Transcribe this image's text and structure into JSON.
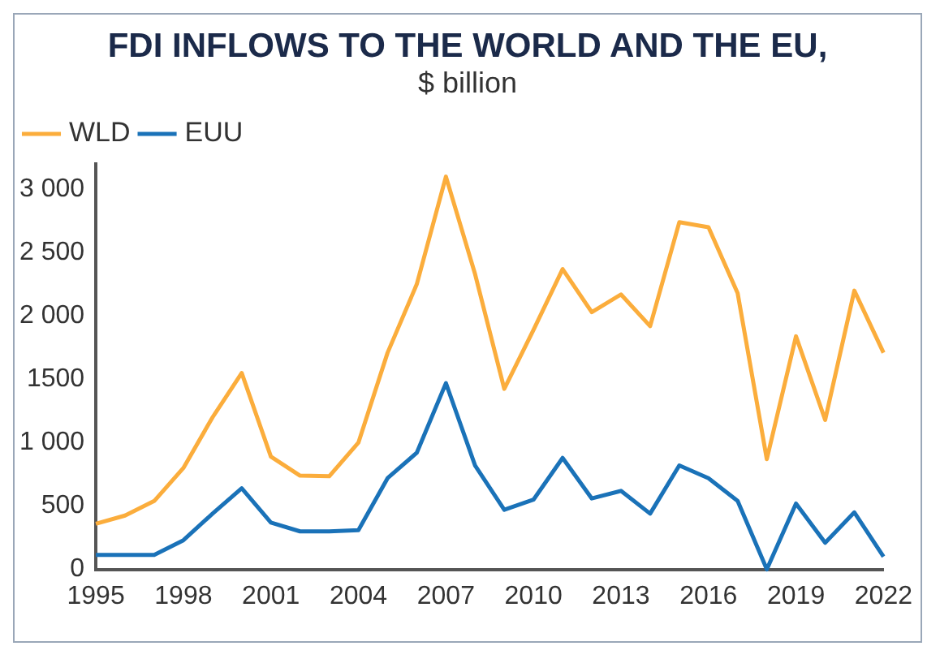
{
  "chart_data": {
    "type": "line",
    "title": "FDI INFLOWS TO THE WORLD AND THE EU,",
    "subtitle": "$ billion",
    "x": [
      1995,
      1996,
      1997,
      1998,
      1999,
      2000,
      2001,
      2002,
      2003,
      2004,
      2005,
      2006,
      2007,
      2008,
      2009,
      2010,
      2011,
      2012,
      2013,
      2014,
      2015,
      2016,
      2017,
      2018,
      2019,
      2020,
      2021,
      2022
    ],
    "series": [
      {
        "name": "WLD",
        "color": "#fbad3c",
        "values": [
          360,
          425,
          540,
          800,
          1200,
          1550,
          890,
          740,
          735,
          1000,
          1710,
          2250,
          3100,
          2330,
          1425,
          1890,
          2370,
          2030,
          2170,
          1920,
          2740,
          2700,
          2180,
          870,
          1840,
          1180,
          2200,
          1710
        ]
      },
      {
        "name": "EUU",
        "color": "#1a72b8",
        "values": [
          115,
          115,
          115,
          230,
          440,
          640,
          370,
          300,
          300,
          310,
          720,
          920,
          1470,
          820,
          470,
          550,
          880,
          560,
          620,
          440,
          820,
          720,
          540,
          0,
          520,
          210,
          450,
          100
        ]
      }
    ],
    "xlim": [
      1995,
      2022
    ],
    "xticks": [
      1995,
      1998,
      2001,
      2004,
      2007,
      2010,
      2013,
      2016,
      2019,
      2022
    ],
    "ylim": [
      0,
      3200
    ],
    "yticks": [
      {
        "value": 0,
        "label": "0"
      },
      {
        "value": 500,
        "label": "500"
      },
      {
        "value": 1000,
        "label": "1 000"
      },
      {
        "value": 1500,
        "label": "1500"
      },
      {
        "value": 2000,
        "label": "2 000"
      },
      {
        "value": 2500,
        "label": "2 500"
      },
      {
        "value": 3000,
        "label": "3 000"
      }
    ],
    "grid": false,
    "legend": "top left",
    "marker": "none",
    "line_style": "solid"
  }
}
